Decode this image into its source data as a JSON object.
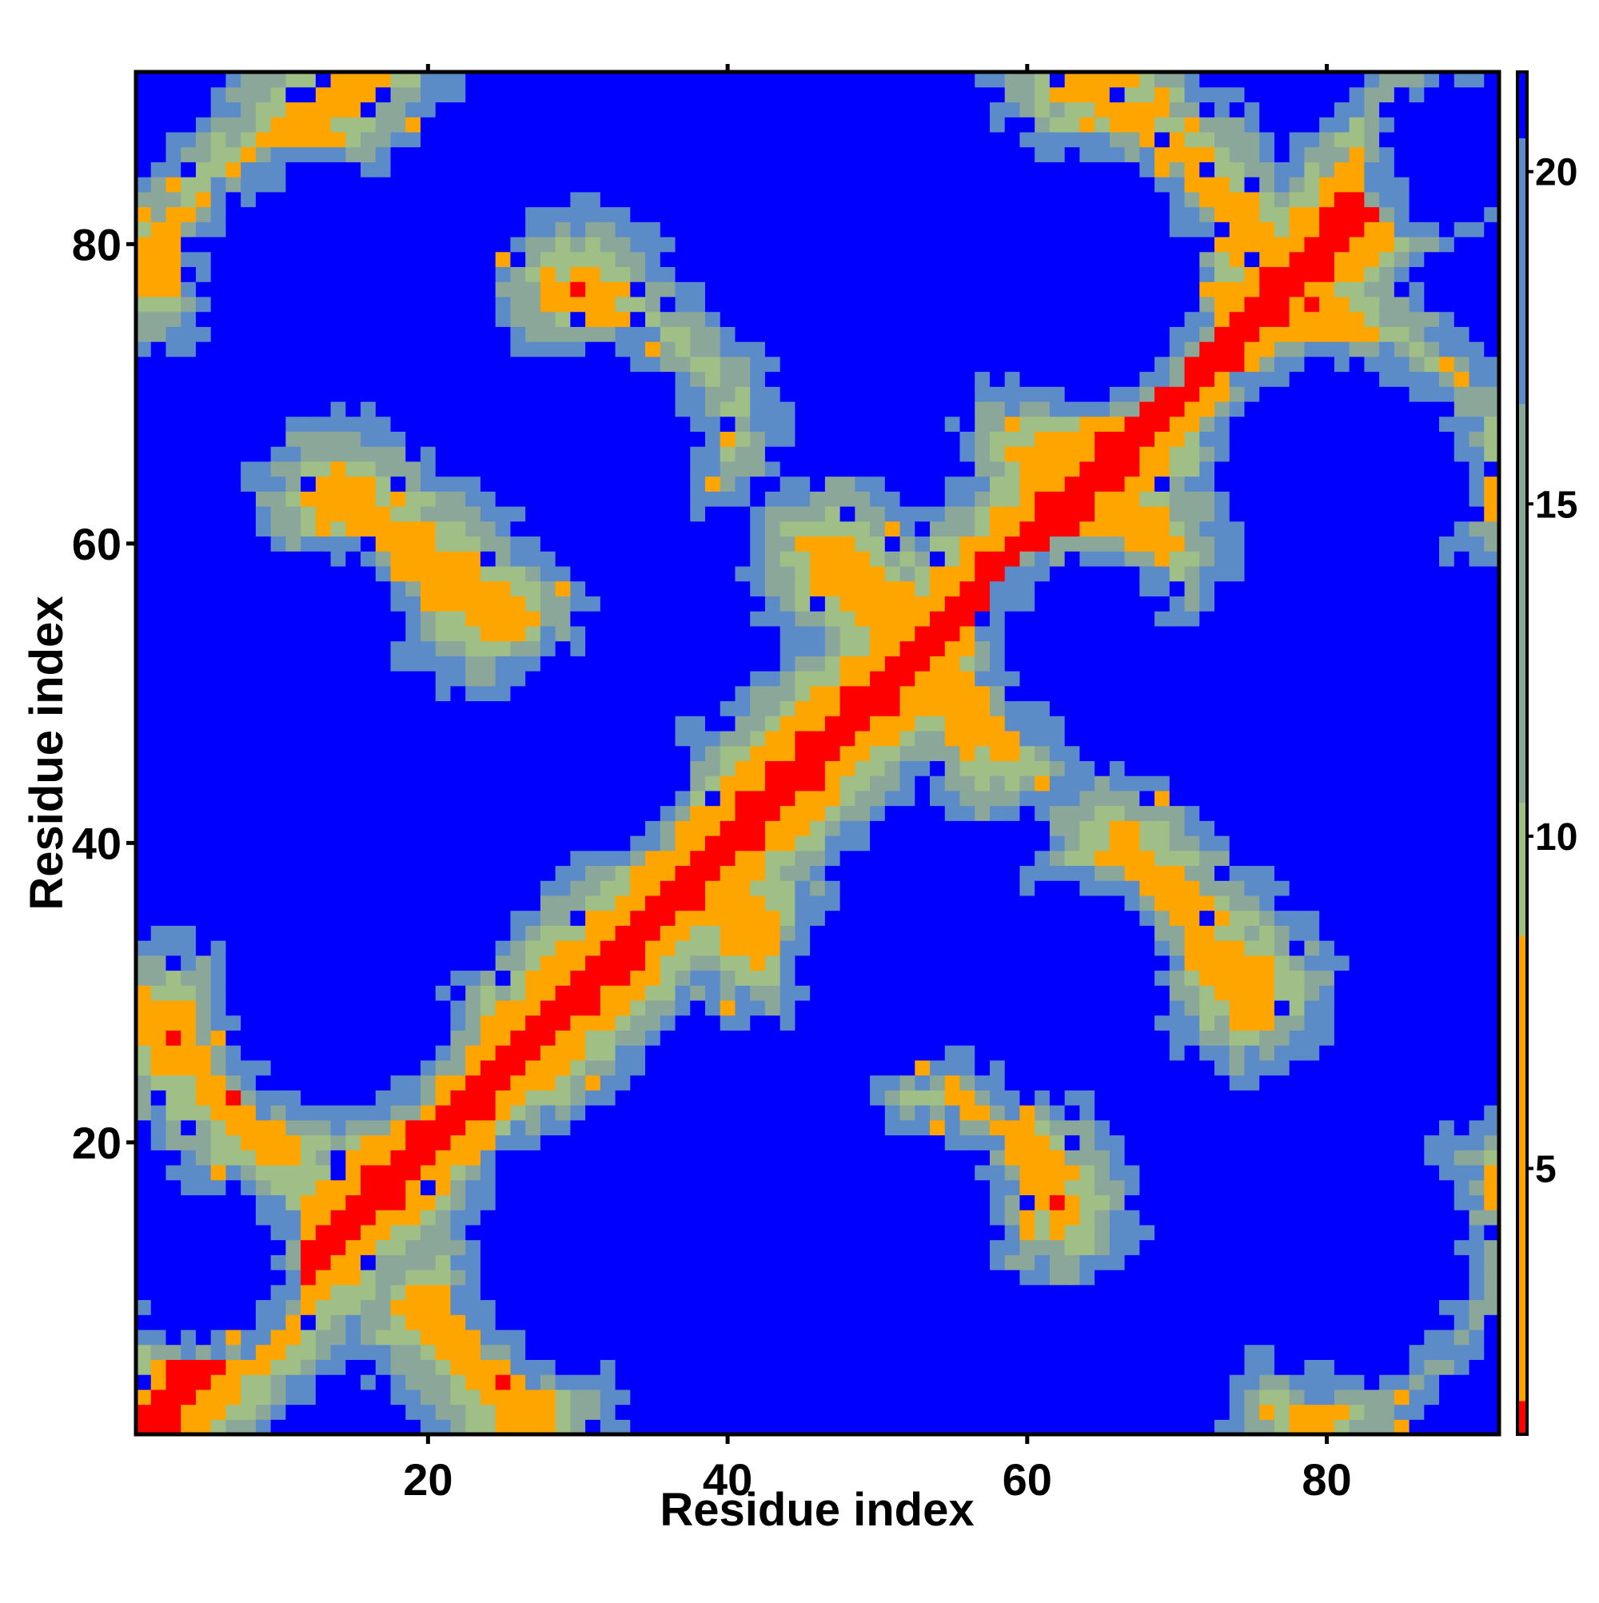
{
  "chart_data": {
    "type": "heatmap",
    "title": "",
    "xlabel": "Residue index",
    "ylabel": "Residue index",
    "n_residues": 91,
    "xlim": [
      0.5,
      91.5
    ],
    "ylim": [
      0.5,
      91.5
    ],
    "x_ticks": [
      20,
      40,
      60,
      80
    ],
    "y_ticks": [
      20,
      40,
      60,
      80
    ],
    "colorbar": {
      "range": [
        1,
        21.5
      ],
      "ticks": [
        5,
        10,
        15,
        20
      ],
      "orientation": "vertical",
      "placement": "right",
      "bands": [
        {
          "from": 1,
          "to": 1.5,
          "color": "#ff0000"
        },
        {
          "from": 1.5,
          "to": 8.5,
          "color": "#ffa500"
        },
        {
          "from": 8.5,
          "to": 10.5,
          "color": "#9fbf86"
        },
        {
          "from": 10.5,
          "to": 16.5,
          "color": "#8aa79a"
        },
        {
          "from": 16.5,
          "to": 20.5,
          "color": "#5c8cc8"
        },
        {
          "from": 20.5,
          "to": 21.5,
          "color": "#0000ff"
        }
      ]
    },
    "colors": {
      "red": "#ff0000",
      "orange": "#ffa500",
      "green": "#9fbf86",
      "greengrey": "#8aa79a",
      "steel": "#5c8cc8",
      "blue": "#0000ff"
    },
    "distance_bins": [
      {
        "max": 1.5,
        "color": "#ff0000"
      },
      {
        "max": 7.5,
        "color": "#ffa500"
      },
      {
        "max": 11,
        "color": "#9fbf86"
      },
      {
        "max": 14.5,
        "color": "#8aa79a"
      },
      {
        "max": 18,
        "color": "#5c8cc8"
      },
      {
        "max": 999,
        "color": "#0000ff"
      }
    ],
    "main_diagonal_halfwidth": 1.2,
    "contact_bands": [
      {
        "x0": 2,
        "y0": 78,
        "x1": 16,
        "y1": 92,
        "w": 1.2
      },
      {
        "x0": 2,
        "y0": 28,
        "x1": 10,
        "y1": 20,
        "w": 1.3
      },
      {
        "x0": 20,
        "y0": 9,
        "x1": 27,
        "y1": 2,
        "w": 1.3
      },
      {
        "x0": 14,
        "y0": 63,
        "x1": 25,
        "y1": 55,
        "w": 1.3
      },
      {
        "x0": 30,
        "y0": 77,
        "x1": 38,
        "y1": 68,
        "w": 1.3
      },
      {
        "x0": 34,
        "y0": 43,
        "x1": 42,
        "y1": 34,
        "w": 1.4
      },
      {
        "x0": 47,
        "y0": 59,
        "x1": 58,
        "y1": 47,
        "w": 1.3
      },
      {
        "x0": 55,
        "y0": 25,
        "x1": 62,
        "y1": 16,
        "w": 1.3
      },
      {
        "x0": 66,
        "y0": 39,
        "x1": 75,
        "y1": 30,
        "w": 1.3
      },
      {
        "x0": 63,
        "y0": 92,
        "x1": 77,
        "y1": 78,
        "w": 1.2
      },
      {
        "x0": 78,
        "y0": 77,
        "x1": 91,
        "y1": 64,
        "w": 1.2
      },
      {
        "x0": 79,
        "y0": 2,
        "x1": 91,
        "y1": 16,
        "w": 1.2
      },
      {
        "x0": 61,
        "y0": 66,
        "x1": 68,
        "y1": 60,
        "w": 1.1
      }
    ],
    "blue_blobs": [
      {
        "cx": 13,
        "cy": 77,
        "r": 7
      },
      {
        "cx": 31,
        "cy": 66,
        "r": 6
      },
      {
        "cx": 30,
        "cy": 46,
        "r": 5.5
      },
      {
        "cx": 14,
        "cy": 30,
        "r": 6.5
      },
      {
        "cx": 31,
        "cy": 13,
        "r": 7
      },
      {
        "cx": 47,
        "cy": 79,
        "r": 6.5
      },
      {
        "cx": 51,
        "cy": 31,
        "r": 5
      },
      {
        "cx": 52,
        "cy": 15,
        "r": 5
      },
      {
        "cx": 63,
        "cy": 78,
        "r": 7
      },
      {
        "cx": 62,
        "cy": 30,
        "r": 6
      },
      {
        "cx": 81,
        "cy": 64,
        "r": 7
      },
      {
        "cx": 80,
        "cy": 46,
        "r": 6.5
      },
      {
        "cx": 81,
        "cy": 13,
        "r": 7.5
      },
      {
        "cx": 13,
        "cy": 54,
        "r": 4
      },
      {
        "cx": 64,
        "cy": 53,
        "r": 4.5
      },
      {
        "cx": 89,
        "cy": 86,
        "r": 4
      },
      {
        "cx": 5,
        "cy": 47,
        "r": 5
      },
      {
        "cx": 88,
        "cy": 33,
        "r": 4
      },
      {
        "cx": 5,
        "cy": 12,
        "r": 4
      },
      {
        "cx": 40,
        "cy": 89,
        "r": 3.5
      }
    ],
    "noise_seed": 7
  }
}
